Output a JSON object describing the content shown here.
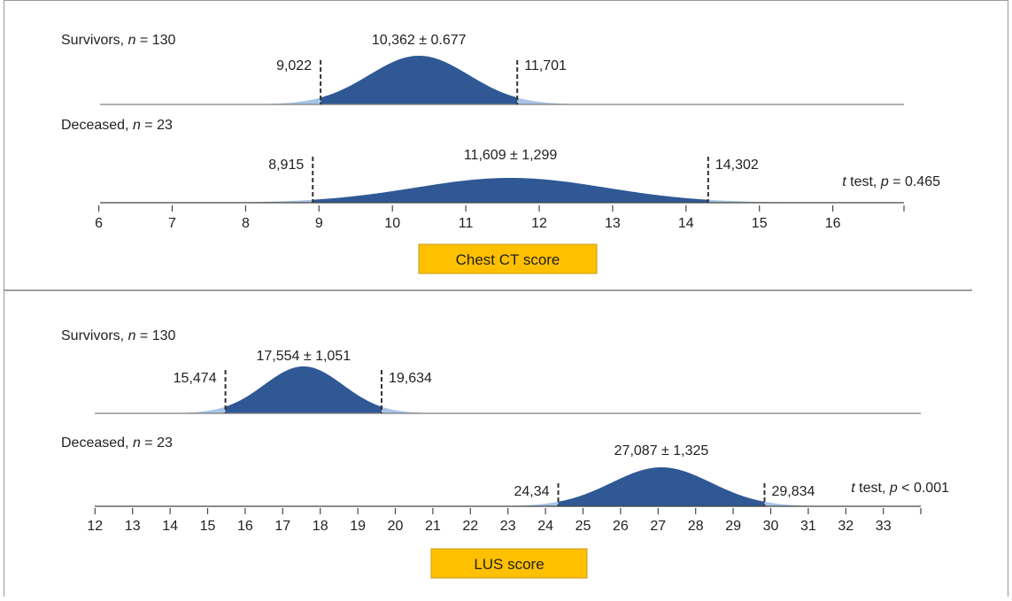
{
  "colors": {
    "fill_inner": "#2f5895",
    "fill_outer": "#a7c4e6",
    "baseline": "#7f7f7f",
    "axis": "#444444",
    "box_fill": "#ffc000",
    "box_stroke": "#c99a1a",
    "frame": "#999999"
  },
  "chart_data": [
    {
      "type": "area",
      "xlabel": "Chest CT score",
      "xlim": [
        6,
        17
      ],
      "xticks": [
        6,
        7,
        8,
        9,
        10,
        11,
        12,
        13,
        14,
        15,
        16
      ],
      "test_text": {
        "prefix": "t",
        "middle": " test, ",
        "p": "p",
        "suffix": " = 0.465"
      },
      "series": [
        {
          "name_main": "Survivors, ",
          "name_n": "n",
          "name_rest": " = 130",
          "mean": 10.362,
          "sd": 0.677,
          "summary_label": "10,362 ± 0.677",
          "lower": 9.022,
          "upper": 11.701,
          "lower_label": "9,022",
          "upper_label": "11,701"
        },
        {
          "name_main": "Deceased, ",
          "name_n": "n",
          "name_rest": " = 23",
          "mean": 11.609,
          "sd": 1.299,
          "summary_label": "11,609 ± 1,299",
          "lower": 8.915,
          "upper": 14.302,
          "lower_label": "8,915",
          "upper_label": "14,302"
        }
      ]
    },
    {
      "type": "area",
      "xlabel": "LUS score",
      "xlim": [
        12,
        34
      ],
      "xticks": [
        12,
        13,
        14,
        15,
        16,
        17,
        18,
        19,
        20,
        21,
        22,
        23,
        24,
        25,
        26,
        27,
        28,
        29,
        30,
        31,
        32,
        33
      ],
      "test_text": {
        "prefix": "t",
        "middle": " test, ",
        "p": "p",
        "suffix": " < 0.001"
      },
      "series": [
        {
          "name_main": "Survivors, ",
          "name_n": "n",
          "name_rest": " = 130",
          "mean": 17.554,
          "sd": 1.051,
          "summary_label": "17,554 ± 1,051",
          "lower": 15.474,
          "upper": 19.634,
          "lower_label": "15,474",
          "upper_label": "19,634"
        },
        {
          "name_main": "Deceased, ",
          "name_n": "n",
          "name_rest": " = 23",
          "mean": 27.087,
          "sd": 1.325,
          "summary_label": "27,087 ± 1,325",
          "lower": 24.34,
          "upper": 29.834,
          "lower_label": "24,34",
          "upper_label": "29,834"
        }
      ]
    }
  ]
}
